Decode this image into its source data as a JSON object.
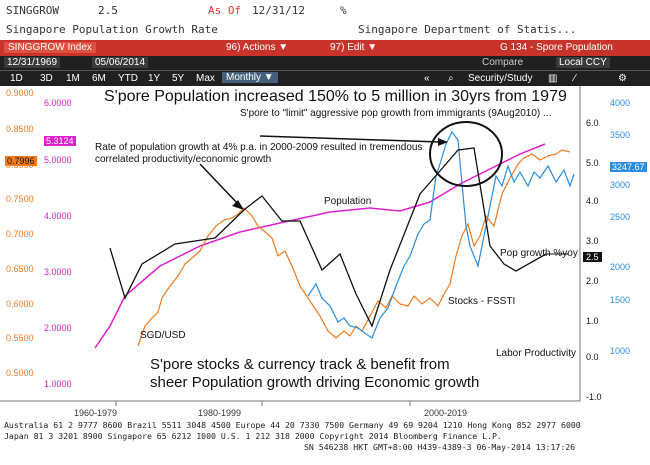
{
  "header": {
    "ticker": "SINGGROW",
    "value": "2.5",
    "asof_label": "As Of",
    "asof_date": "12/31/12",
    "unit": "%",
    "description": "Singapore Population Growth Rate",
    "source": "Singapore Department of Statis..."
  },
  "toolbar": {
    "index_label": "SINGGROW Index",
    "actions": "96) Actions ▼",
    "edit": "97) Edit ▼",
    "page": "G 134 - Spore Population",
    "start_date": "12/31/1969",
    "end_date": "05/06/2014",
    "compare": "Compare",
    "currency": "Local CCY",
    "periods": [
      "1D",
      "3D",
      "1M",
      "6M",
      "YTD",
      "1Y",
      "5Y",
      "Max"
    ],
    "frequency": "Monthly ▼",
    "security_study": "Security/Study",
    "icons": [
      "candles-icon",
      "line-icon",
      "gear-icon"
    ]
  },
  "chart": {
    "title": "S'pore Population increased 150% to 5 million in 30yrs from 1979",
    "subtitle": "S'pore to \"limit\" aggressive pop growth from immigrants (9Aug2010) ...",
    "note1": "Rate of population growth at 4% p.a. in 2000-2009 resulted in tremendous correlated productivity/economic growth",
    "bottom_text_1": "S'pore stocks & currency track & benefit from",
    "bottom_text_2": "sheer Population growth driving Economic growth",
    "labels": {
      "population": "Population",
      "pop_growth": "Pop growth %yoy",
      "stocks": "Stocks - FSSTI",
      "sgd": "SGD/USD",
      "labor": "Labor Productivity"
    },
    "left_axis_1": [
      "0.9000",
      "0.8500",
      "0.8000",
      "0.7500",
      "0.7000",
      "0.6500",
      "0.6000",
      "0.5500",
      "0.5000"
    ],
    "left_axis_2": [
      "6.0000",
      "5.0000",
      "4.0000",
      "3.0000",
      "2.0000",
      "1.0000"
    ],
    "right_axis_1": [
      "4000",
      "3500",
      "3000",
      "2500",
      "2000",
      "1500",
      "1000"
    ],
    "right_axis_2": [
      "6.0",
      "5.0",
      "4.0",
      "3.0",
      "2.0",
      "1.0",
      "0.0",
      "-1.0"
    ],
    "tags": {
      "pop": "5.3124",
      "sgd": "0.7996",
      "stocks": "3247.67",
      "growth": "2.5"
    },
    "x_labels": [
      "1960-1979",
      "1980-1999",
      "2000-2019"
    ]
  },
  "footer": {
    "line1": "Australia 61 2 9777 8600 Brazil 5511 3048 4500 Europe 44 20 7330 7500 Germany 49 69 9204 1210 Hong Kong 852 2977 6000",
    "line2": "Japan 81 3 3201 8900      Singapore 65 6212 1000      U.S. 1 212 318 2000      Copyright 2014 Bloomberg Finance L.P.",
    "line3": "SN 546238 HKT  GMT+8:00 H439-4389-3 06-May-2014 13:17:26"
  },
  "colors": {
    "red": "#c8332b",
    "black": "#111111",
    "magenta": "#e020d0",
    "orange": "#f07a20",
    "blue": "#2a8de0"
  }
}
